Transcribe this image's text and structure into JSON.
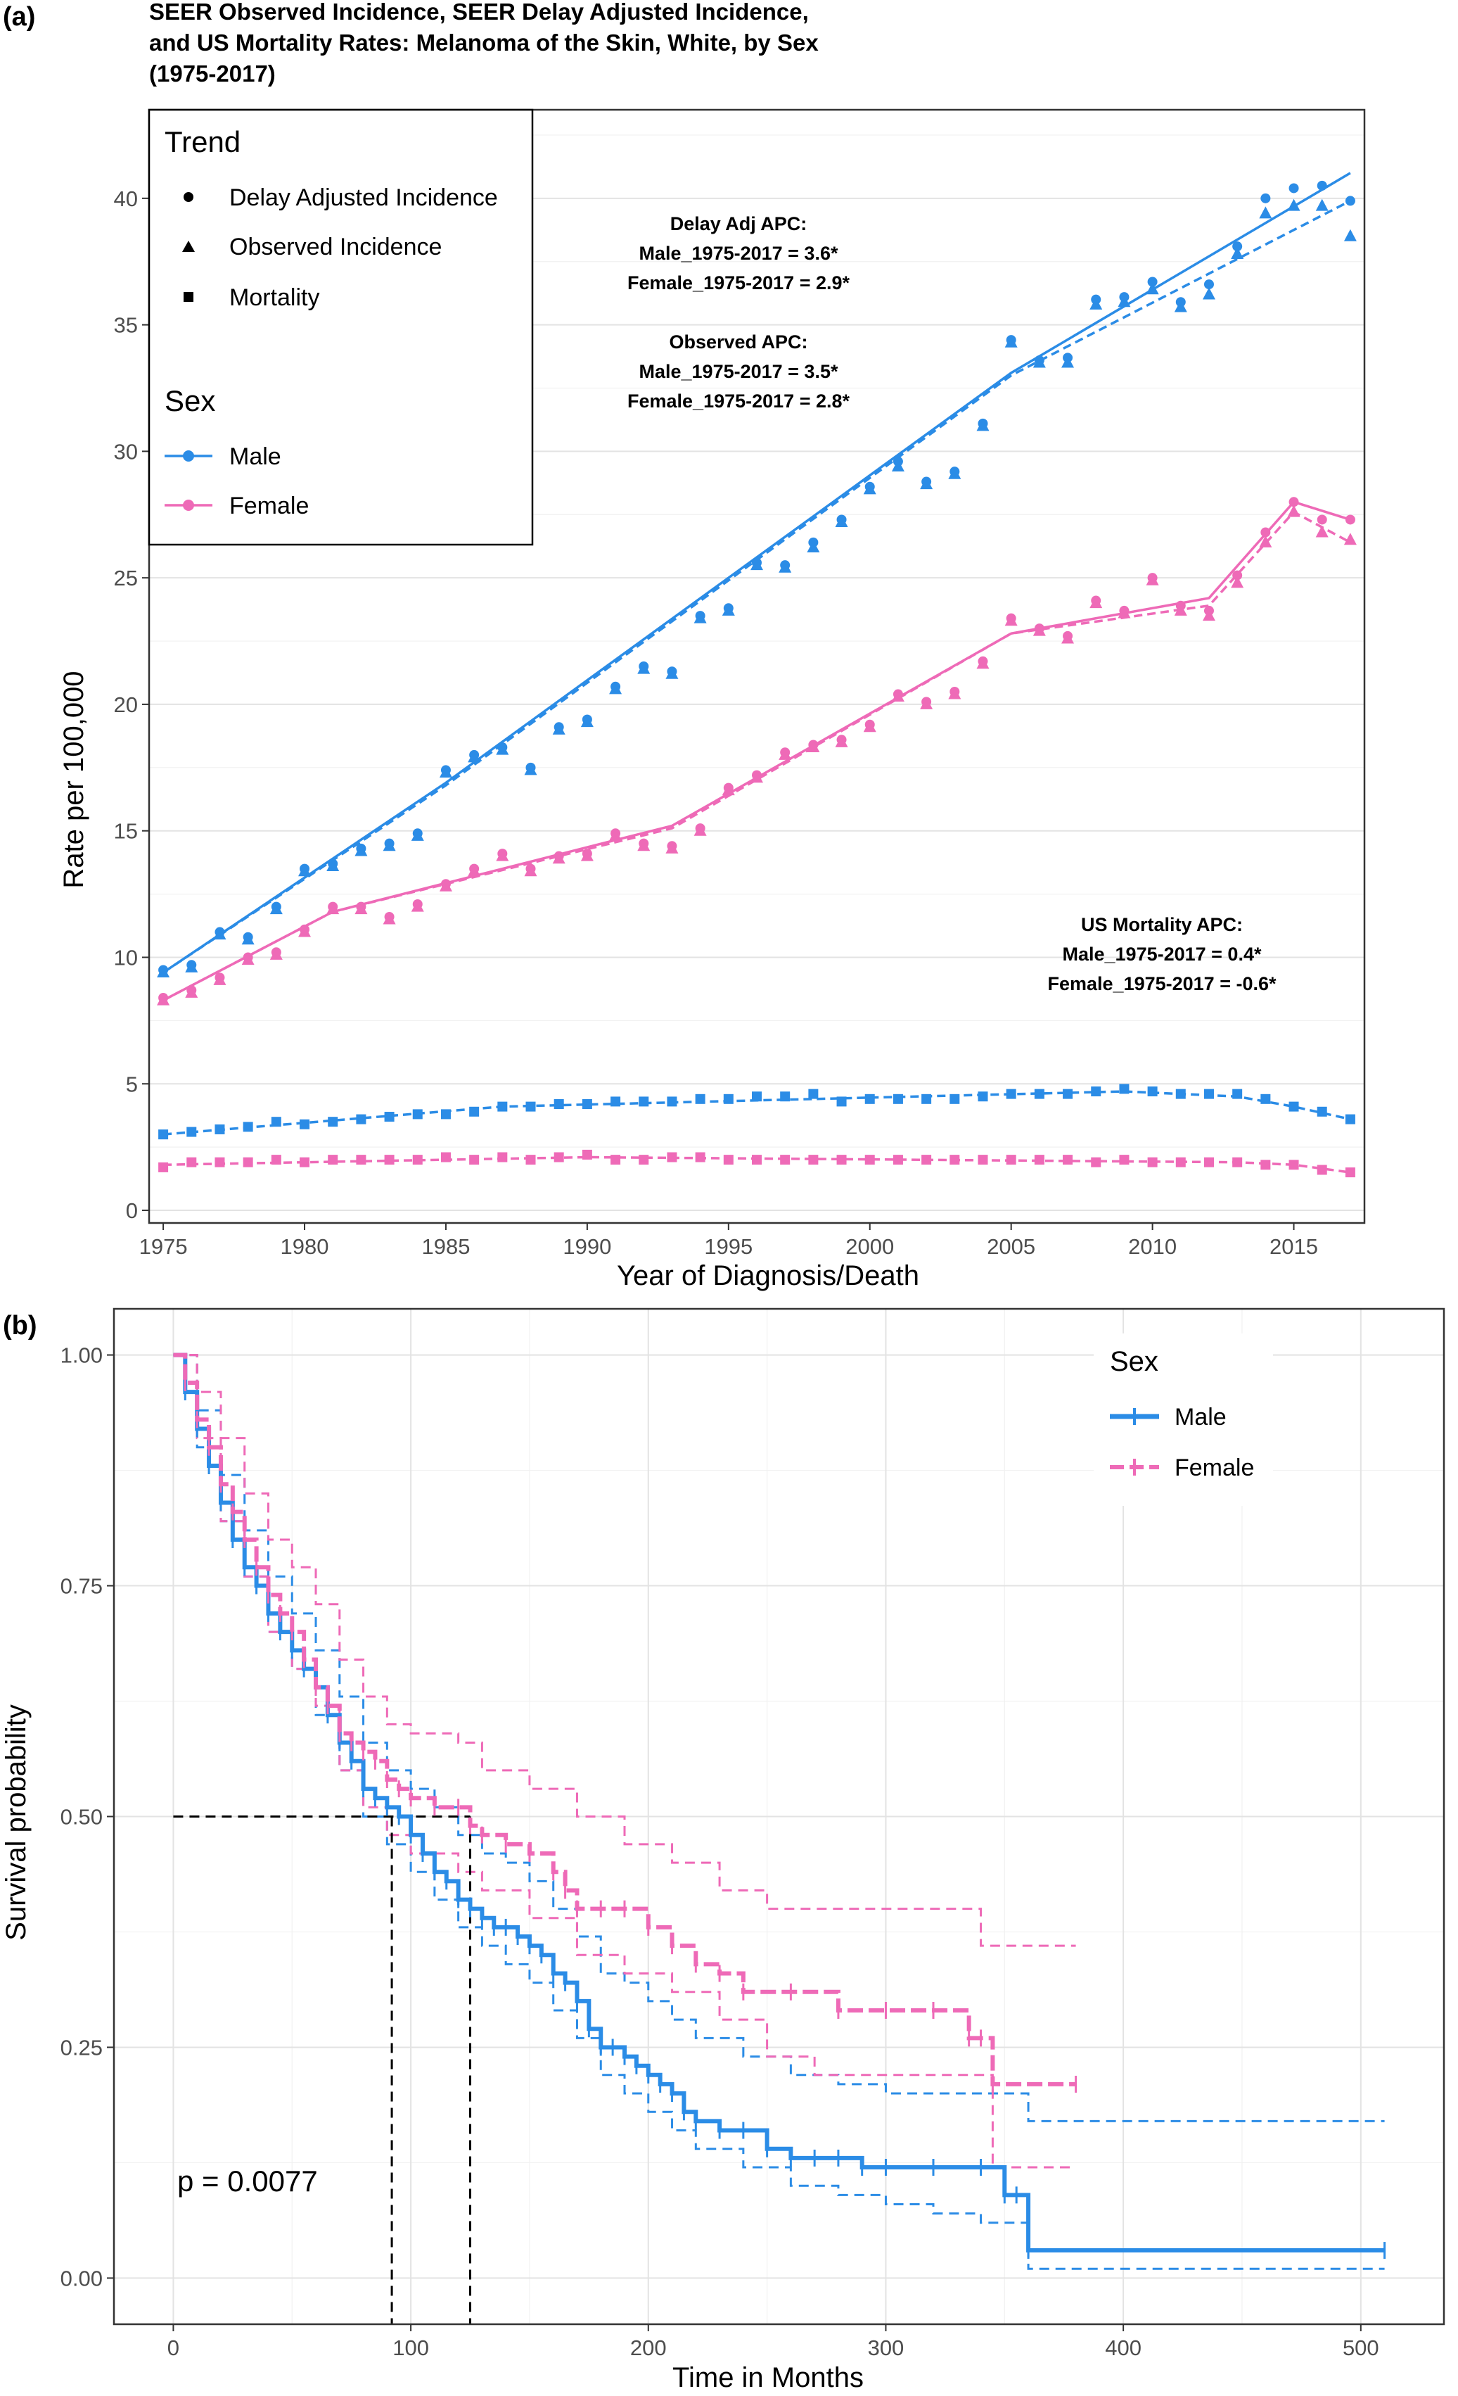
{
  "chart_data": [
    {
      "type": "line",
      "panel_label": "(a)",
      "title_lines": [
        "SEER Observed Incidence, SEER Delay Adjusted Incidence,",
        "and US Mortality Rates: Melanoma of the Skin, White, by Sex",
        "(1975-2017)"
      ],
      "xlabel": "Year of Diagnosis/Death",
      "ylabel": "Rate per 100,000",
      "xlim": [
        1974.5,
        2017.5
      ],
      "ylim": [
        -0.5,
        43.5
      ],
      "xticks": [
        1975,
        1980,
        1985,
        1990,
        1995,
        2000,
        2005,
        2010,
        2015
      ],
      "yticks": [
        0,
        5,
        10,
        15,
        20,
        25,
        30,
        35,
        40
      ],
      "legend": {
        "placement": "top-left",
        "trend_title": "Trend",
        "trend_items": [
          "Delay Adjusted Incidence",
          "Observed Incidence",
          "Mortality"
        ],
        "sex_title": "Sex",
        "sex_items": [
          "Male",
          "Female"
        ]
      },
      "annotations": {
        "delay": [
          "Delay Adj APC:",
          "Male_1975-2017 = 3.6*",
          "Female_1975-2017 = 2.9*"
        ],
        "observed": [
          "Observed APC:",
          "Male_1975-2017 = 3.5*",
          "Female_1975-2017 = 2.8*"
        ],
        "mortality": [
          "US Mortality APC:",
          "Male_1975-2017 = 0.4*",
          "Female_1975-2017 = -0.6*"
        ]
      },
      "colors": {
        "male": "#2b8ce6",
        "female": "#ee6ab7"
      },
      "years": [
        1975,
        1976,
        1977,
        1978,
        1979,
        1980,
        1981,
        1982,
        1983,
        1984,
        1985,
        1986,
        1987,
        1988,
        1989,
        1990,
        1991,
        1992,
        1993,
        1994,
        1995,
        1996,
        1997,
        1998,
        1999,
        2000,
        2001,
        2002,
        2003,
        2004,
        2005,
        2006,
        2007,
        2008,
        2009,
        2010,
        2011,
        2012,
        2013,
        2014,
        2015,
        2016,
        2017
      ],
      "series": [
        {
          "sex": "Male",
          "trend": "Observed Incidence",
          "marker": "triangle",
          "values": [
            9.4,
            9.6,
            10.9,
            10.7,
            11.9,
            13.4,
            13.6,
            14.2,
            14.4,
            14.8,
            17.3,
            17.9,
            18.2,
            17.4,
            19.0,
            19.3,
            20.6,
            21.4,
            21.2,
            23.4,
            23.7,
            25.5,
            25.4,
            26.2,
            27.2,
            28.5,
            29.4,
            28.7,
            29.1,
            31.0,
            34.3,
            33.5,
            33.5,
            35.8,
            35.9,
            36.4,
            35.7,
            36.2,
            37.8,
            39.4,
            39.7,
            39.7,
            38.5
          ]
        },
        {
          "sex": "Male",
          "trend": "Delay Adjusted Incidence",
          "marker": "circle",
          "values": [
            9.5,
            9.7,
            11.0,
            10.8,
            12.0,
            13.5,
            13.7,
            14.3,
            14.5,
            14.9,
            17.4,
            18.0,
            18.3,
            17.5,
            19.1,
            19.4,
            20.7,
            21.5,
            21.3,
            23.5,
            23.8,
            25.6,
            25.5,
            26.4,
            27.3,
            28.6,
            29.6,
            28.8,
            29.2,
            31.1,
            34.4,
            33.6,
            33.7,
            36.0,
            36.1,
            36.7,
            35.9,
            36.6,
            38.1,
            40.0,
            40.4,
            40.5,
            39.9
          ]
        },
        {
          "sex": "Male",
          "trend": "Mortality",
          "marker": "square",
          "values": [
            3.0,
            3.1,
            3.2,
            3.3,
            3.5,
            3.4,
            3.5,
            3.6,
            3.7,
            3.8,
            3.8,
            3.9,
            4.1,
            4.1,
            4.2,
            4.2,
            4.3,
            4.3,
            4.3,
            4.4,
            4.4,
            4.5,
            4.5,
            4.6,
            4.3,
            4.4,
            4.4,
            4.4,
            4.4,
            4.5,
            4.6,
            4.6,
            4.6,
            4.7,
            4.8,
            4.7,
            4.6,
            4.6,
            4.6,
            4.4,
            4.1,
            3.9,
            3.6
          ]
        },
        {
          "sex": "Female",
          "trend": "Observed Incidence",
          "marker": "triangle",
          "values": [
            8.3,
            8.6,
            9.1,
            9.9,
            10.1,
            11.0,
            11.9,
            11.9,
            11.5,
            12.0,
            12.8,
            13.4,
            14.0,
            13.4,
            13.9,
            14.0,
            14.8,
            14.4,
            14.3,
            15.0,
            16.6,
            17.1,
            18.0,
            18.3,
            18.5,
            19.1,
            20.3,
            20.0,
            20.4,
            21.6,
            23.3,
            22.9,
            22.6,
            24.0,
            23.6,
            24.9,
            23.7,
            23.5,
            24.8,
            26.4,
            27.6,
            26.8,
            26.5
          ]
        },
        {
          "sex": "Female",
          "trend": "Delay Adjusted Incidence",
          "marker": "circle",
          "values": [
            8.4,
            8.7,
            9.2,
            10.0,
            10.2,
            11.1,
            12.0,
            12.0,
            11.6,
            12.1,
            12.9,
            13.5,
            14.1,
            13.5,
            14.0,
            14.1,
            14.9,
            14.5,
            14.4,
            15.1,
            16.7,
            17.2,
            18.1,
            18.4,
            18.6,
            19.2,
            20.4,
            20.1,
            20.5,
            21.7,
            23.4,
            23.0,
            22.7,
            24.1,
            23.7,
            25.0,
            23.9,
            23.7,
            25.1,
            26.8,
            28.0,
            27.3,
            27.3
          ]
        },
        {
          "sex": "Female",
          "trend": "Mortality",
          "marker": "square",
          "values": [
            1.7,
            1.9,
            1.9,
            1.9,
            2.0,
            1.9,
            2.0,
            2.0,
            2.0,
            2.0,
            2.1,
            2.0,
            2.1,
            2.0,
            2.1,
            2.2,
            2.0,
            2.0,
            2.1,
            2.1,
            2.0,
            2.0,
            2.0,
            2.0,
            2.0,
            2.0,
            2.0,
            2.0,
            2.0,
            2.0,
            2.0,
            2.0,
            2.0,
            1.9,
            2.0,
            1.9,
            1.9,
            1.9,
            1.9,
            1.8,
            1.8,
            1.6,
            1.5
          ]
        }
      ],
      "trend_lines": [
        {
          "sex": "Male",
          "trend": "Delay Adjusted Incidence",
          "style": "solid",
          "x": [
            1975,
            1985,
            2005,
            2017
          ],
          "y": [
            9.4,
            16.9,
            33.1,
            41.0
          ]
        },
        {
          "sex": "Male",
          "trend": "Observed Incidence",
          "style": "dashed",
          "x": [
            1975,
            1985,
            2005,
            2017
          ],
          "y": [
            9.4,
            16.8,
            33.0,
            39.9
          ]
        },
        {
          "sex": "Female",
          "trend": "Delay Adjusted Incidence",
          "style": "solid",
          "x": [
            1975,
            1981,
            1993,
            2005,
            2012,
            2015,
            2017
          ],
          "y": [
            8.3,
            11.8,
            15.2,
            22.8,
            24.2,
            28.0,
            27.3
          ]
        },
        {
          "sex": "Female",
          "trend": "Observed Incidence",
          "style": "dashed",
          "x": [
            1975,
            1981,
            1993,
            2005,
            2012,
            2015,
            2017
          ],
          "y": [
            8.3,
            11.8,
            15.1,
            22.8,
            23.9,
            27.6,
            26.4
          ]
        },
        {
          "sex": "Male",
          "trend": "Mortality",
          "style": "dashed",
          "x": [
            1975,
            1987,
            2009,
            2013,
            2015,
            2017
          ],
          "y": [
            3.0,
            4.1,
            4.7,
            4.5,
            4.1,
            3.6
          ]
        },
        {
          "sex": "Female",
          "trend": "Mortality",
          "style": "dashed",
          "x": [
            1975,
            1990,
            2013,
            2015,
            2017
          ],
          "y": [
            1.8,
            2.1,
            1.9,
            1.8,
            1.5
          ]
        }
      ]
    },
    {
      "type": "line",
      "panel_label": "(b)",
      "xlabel": "Time in Months",
      "ylabel": "Survival probability",
      "xlim": [
        -25,
        535
      ],
      "ylim": [
        -0.05,
        1.05
      ],
      "xticks": [
        0,
        100,
        200,
        300,
        400,
        500
      ],
      "yticks": [
        "0.00",
        "0.25",
        "0.50",
        "0.75",
        "1.00"
      ],
      "ytick_values": [
        0,
        0.25,
        0.5,
        0.75,
        1.0
      ],
      "legend": {
        "placement": "top-right",
        "title": "Sex",
        "items": [
          "Male",
          "Female"
        ]
      },
      "pvalue_text": "p = 0.0077",
      "median_survival": {
        "Male": 92,
        "Female": 125
      },
      "colors": {
        "male": "#2b8ce6",
        "female": "#ee6ab7"
      },
      "series": [
        {
          "name": "Male",
          "style": "step-solid",
          "x": [
            0,
            5,
            10,
            15,
            20,
            25,
            30,
            35,
            40,
            45,
            50,
            55,
            60,
            65,
            70,
            75,
            80,
            85,
            90,
            95,
            100,
            105,
            110,
            115,
            120,
            125,
            130,
            135,
            140,
            145,
            150,
            155,
            160,
            165,
            170,
            175,
            180,
            185,
            190,
            195,
            200,
            205,
            210,
            215,
            220,
            230,
            240,
            250,
            260,
            270,
            280,
            290,
            300,
            320,
            340,
            350,
            355,
            360,
            510
          ],
          "y": [
            1.0,
            0.96,
            0.92,
            0.88,
            0.84,
            0.8,
            0.77,
            0.75,
            0.72,
            0.7,
            0.68,
            0.66,
            0.64,
            0.61,
            0.58,
            0.56,
            0.53,
            0.52,
            0.51,
            0.5,
            0.48,
            0.46,
            0.44,
            0.43,
            0.41,
            0.4,
            0.39,
            0.38,
            0.38,
            0.37,
            0.36,
            0.35,
            0.33,
            0.32,
            0.3,
            0.27,
            0.25,
            0.25,
            0.24,
            0.23,
            0.22,
            0.21,
            0.2,
            0.18,
            0.17,
            0.16,
            0.16,
            0.14,
            0.13,
            0.13,
            0.13,
            0.12,
            0.12,
            0.12,
            0.12,
            0.09,
            0.09,
            0.03,
            0.03
          ]
        },
        {
          "name": "Male",
          "style": "step-dashed",
          "role": "ci-upper",
          "x": [
            0,
            10,
            20,
            30,
            40,
            50,
            60,
            70,
            80,
            90,
            100,
            110,
            120,
            130,
            140,
            150,
            160,
            170,
            180,
            190,
            200,
            210,
            220,
            240,
            260,
            280,
            300,
            320,
            340,
            360,
            510
          ],
          "y": [
            1.0,
            0.94,
            0.87,
            0.81,
            0.76,
            0.72,
            0.68,
            0.63,
            0.58,
            0.55,
            0.53,
            0.51,
            0.48,
            0.46,
            0.45,
            0.43,
            0.4,
            0.37,
            0.33,
            0.32,
            0.3,
            0.28,
            0.26,
            0.24,
            0.22,
            0.21,
            0.2,
            0.2,
            0.2,
            0.17,
            0.17
          ]
        },
        {
          "name": "Male",
          "style": "step-dashed",
          "role": "ci-lower",
          "x": [
            0,
            10,
            20,
            30,
            40,
            50,
            60,
            70,
            80,
            90,
            100,
            110,
            120,
            130,
            140,
            150,
            160,
            170,
            180,
            190,
            200,
            210,
            220,
            240,
            260,
            280,
            300,
            320,
            340,
            360,
            510
          ],
          "y": [
            1.0,
            0.9,
            0.82,
            0.76,
            0.7,
            0.66,
            0.61,
            0.55,
            0.5,
            0.47,
            0.44,
            0.41,
            0.38,
            0.36,
            0.34,
            0.32,
            0.29,
            0.26,
            0.22,
            0.2,
            0.18,
            0.16,
            0.14,
            0.12,
            0.1,
            0.09,
            0.08,
            0.07,
            0.06,
            0.01,
            0.01
          ]
        },
        {
          "name": "Female",
          "style": "step-solid",
          "x": [
            0,
            5,
            10,
            15,
            20,
            25,
            30,
            35,
            40,
            45,
            50,
            55,
            60,
            65,
            70,
            75,
            80,
            85,
            90,
            95,
            100,
            110,
            120,
            125,
            130,
            140,
            150,
            160,
            165,
            170,
            180,
            190,
            200,
            210,
            220,
            230,
            240,
            260,
            280,
            300,
            320,
            335,
            340,
            345,
            380
          ],
          "y": [
            1.0,
            0.97,
            0.93,
            0.9,
            0.86,
            0.83,
            0.8,
            0.77,
            0.74,
            0.72,
            0.7,
            0.67,
            0.64,
            0.62,
            0.59,
            0.58,
            0.57,
            0.56,
            0.54,
            0.53,
            0.52,
            0.51,
            0.51,
            0.49,
            0.48,
            0.47,
            0.46,
            0.44,
            0.42,
            0.4,
            0.4,
            0.4,
            0.38,
            0.36,
            0.34,
            0.33,
            0.31,
            0.31,
            0.29,
            0.29,
            0.29,
            0.26,
            0.26,
            0.21,
            0.21
          ]
        },
        {
          "name": "Female",
          "style": "step-dashed",
          "role": "ci-upper",
          "x": [
            0,
            10,
            20,
            30,
            40,
            50,
            60,
            70,
            80,
            90,
            100,
            120,
            130,
            150,
            170,
            190,
            210,
            230,
            250,
            270,
            300,
            340,
            345,
            380
          ],
          "y": [
            1.0,
            0.96,
            0.91,
            0.85,
            0.8,
            0.77,
            0.73,
            0.67,
            0.63,
            0.6,
            0.59,
            0.58,
            0.55,
            0.53,
            0.5,
            0.47,
            0.45,
            0.42,
            0.4,
            0.4,
            0.4,
            0.36,
            0.36,
            0.36
          ]
        },
        {
          "name": "Female",
          "style": "step-dashed",
          "role": "ci-lower",
          "x": [
            0,
            10,
            20,
            30,
            40,
            50,
            60,
            70,
            80,
            90,
            100,
            120,
            130,
            150,
            170,
            190,
            210,
            230,
            250,
            270,
            300,
            340,
            345,
            380
          ],
          "y": [
            1.0,
            0.91,
            0.82,
            0.76,
            0.7,
            0.66,
            0.62,
            0.55,
            0.51,
            0.48,
            0.46,
            0.44,
            0.42,
            0.39,
            0.35,
            0.33,
            0.31,
            0.28,
            0.24,
            0.22,
            0.22,
            0.22,
            0.12,
            0.12
          ]
        }
      ]
    }
  ]
}
